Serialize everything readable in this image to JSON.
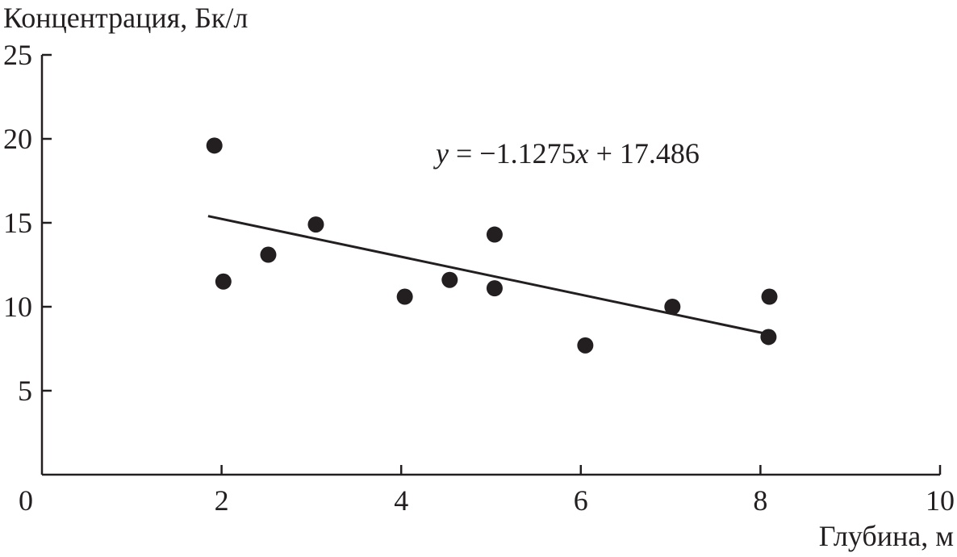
{
  "chart_data": {
    "type": "scatter",
    "title": "",
    "xlabel": "Глубина, м",
    "ylabel": "Концентрация, Бк/л",
    "xlim": [
      0,
      10
    ],
    "ylim": [
      0,
      25
    ],
    "xticks": [
      "0",
      "2",
      "4",
      "6",
      "8",
      "10"
    ],
    "yticks": [
      "5",
      "10",
      "15",
      "20",
      "25"
    ],
    "grid": false,
    "points": [
      {
        "x": 1.92,
        "y": 19.6
      },
      {
        "x": 2.02,
        "y": 11.5
      },
      {
        "x": 2.52,
        "y": 13.1
      },
      {
        "x": 3.05,
        "y": 14.9
      },
      {
        "x": 4.04,
        "y": 10.6
      },
      {
        "x": 4.54,
        "y": 11.6
      },
      {
        "x": 5.04,
        "y": 14.3
      },
      {
        "x": 5.04,
        "y": 11.1
      },
      {
        "x": 6.05,
        "y": 7.7
      },
      {
        "x": 7.02,
        "y": 10.0
      },
      {
        "x": 8.1,
        "y": 10.6
      },
      {
        "x": 8.09,
        "y": 8.2
      }
    ],
    "trendline": {
      "slope": -1.1275,
      "intercept": 17.486,
      "x_range": [
        1.85,
        8.1
      ],
      "equation_y": "y",
      "equation_eq": " = −1.1275",
      "equation_x": "x",
      "equation_rest": " + 17.486"
    },
    "colors": {
      "ink": "#231f20"
    }
  }
}
